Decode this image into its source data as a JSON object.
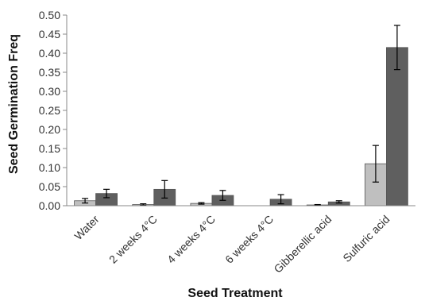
{
  "chart_data": {
    "type": "bar",
    "xlabel": "Seed Treatment",
    "ylabel": "Seed Germination Freq",
    "ylim": [
      0,
      0.5
    ],
    "yticks": [
      "0.00",
      "0.05",
      "0.10",
      "0.15",
      "0.20",
      "0.25",
      "0.30",
      "0.35",
      "0.40",
      "0.45",
      "0.50"
    ],
    "grid": false,
    "legend": "none",
    "categories": [
      "Water",
      "2 weeks 4°C",
      "4 weeks 4°C",
      "6 weeks 4°C",
      "Gibberellic acid",
      "Sulfuric acid"
    ],
    "series": [
      {
        "color": "#bfbfbf",
        "values": [
          0.013,
          0.003,
          0.006,
          0.0,
          0.002,
          0.11
        ],
        "errors": [
          0.006,
          0.002,
          0.002,
          0.0,
          0.001,
          0.048
        ]
      },
      {
        "color": "#5f5f5f",
        "values": [
          0.032,
          0.043,
          0.027,
          0.017,
          0.01,
          0.415
        ],
        "errors": [
          0.011,
          0.023,
          0.013,
          0.012,
          0.003,
          0.058
        ]
      }
    ]
  }
}
